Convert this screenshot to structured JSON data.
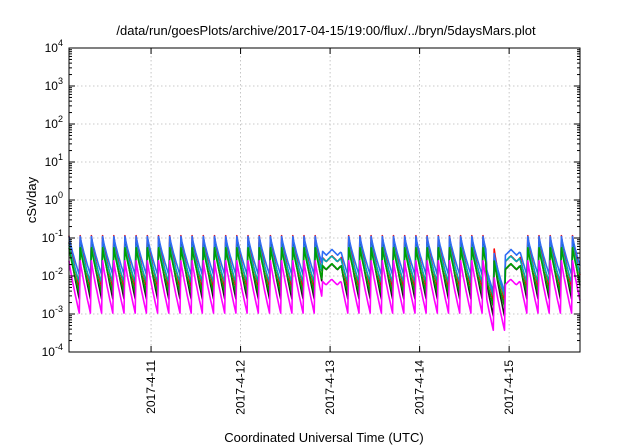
{
  "chart_data": {
    "type": "line",
    "title": "/data/run/goesPlots/archive/2017-04-15/19:00/flux/../bryn/5daysMars.plot",
    "xlabel": "Coordinated Universal Time (UTC)",
    "ylabel": "cSv/day",
    "x_range": [
      "2017-04-10T02:00",
      "2017-04-15T19:00"
    ],
    "x_ticks": [
      "2017-4-11",
      "2017-4-12",
      "2017-4-13",
      "2017-4-14",
      "2017-4-15"
    ],
    "y_scale": "log",
    "ylim": [
      0.0001,
      10000
    ],
    "y_ticks": [
      {
        "base": "10",
        "exp": "-4"
      },
      {
        "base": "10",
        "exp": "-3"
      },
      {
        "base": "10",
        "exp": "-2"
      },
      {
        "base": "10",
        "exp": "-1"
      },
      {
        "base": "10",
        "exp": "0"
      },
      {
        "base": "10",
        "exp": "1"
      },
      {
        "base": "10",
        "exp": "2"
      },
      {
        "base": "10",
        "exp": "3"
      },
      {
        "base": "10",
        "exp": "4"
      }
    ],
    "grid": true,
    "series_pattern": {
      "shape": "sawtooth",
      "period_hours": 3,
      "gaps": [
        {
          "start": "2017-04-12T22:00",
          "end": "2017-04-13T03:00"
        },
        {
          "start": "2017-04-14T23:00",
          "end": "2017-04-15T03:00"
        }
      ],
      "dip": {
        "start": "2017-04-14T18:00",
        "end": "2017-04-14T23:00"
      }
    },
    "series": [
      {
        "color": "#ff0000",
        "peak": 0.115,
        "trough": 0.004
      },
      {
        "color": "#1a1a1a",
        "peak": 0.085,
        "trough": 0.002
      },
      {
        "color": "#00b0b0",
        "peak": 0.075,
        "trough": 0.006
      },
      {
        "color": "#2f6df6",
        "peak": 0.11,
        "trough": 0.009
      },
      {
        "color": "#00a000",
        "peak": 0.06,
        "trough": 0.003
      },
      {
        "color": "#ff00ff",
        "peak": 0.03,
        "trough": 0.0009
      }
    ]
  }
}
